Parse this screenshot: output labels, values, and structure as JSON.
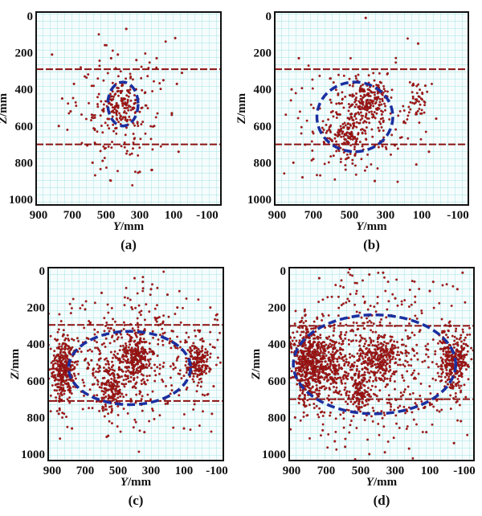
{
  "chart_data": [
    {
      "type": "scatter",
      "label": "(a)",
      "xlabel_var": "Y",
      "xlabel_unit": "/mm",
      "ylabel_var": "Z",
      "ylabel_unit": "/mm",
      "xlim": [
        900,
        -100
      ],
      "ylim": [
        0,
        1000
      ],
      "y_inverted": true,
      "grid": true,
      "xticks": [
        "900",
        "700",
        "500",
        "300",
        "100",
        "-100"
      ],
      "yticks": [
        "0",
        "200",
        "400",
        "600",
        "800",
        "1000"
      ],
      "ref_lines_z": [
        290,
        700
      ],
      "ellipse": {
        "cy": 400,
        "cz": 480,
        "ry": 90,
        "rz": 120
      },
      "clusters": [
        {
          "y": 410,
          "z": 470,
          "sy": 60,
          "sz": 70,
          "n": 130
        },
        {
          "y": 420,
          "z": 540,
          "sy": 140,
          "sz": 140,
          "n": 150
        }
      ],
      "points": [
        [
          820,
          210
        ],
        [
          380,
          70
        ],
        [
          90,
          120
        ],
        [
          430,
          210
        ],
        [
          470,
          230
        ],
        [
          320,
          240
        ],
        [
          200,
          230
        ],
        [
          780,
          600
        ],
        [
          760,
          450
        ],
        [
          690,
          370
        ],
        [
          710,
          520
        ],
        [
          300,
          850
        ],
        [
          230,
          840
        ],
        [
          70,
          740
        ],
        [
          80,
          370
        ],
        [
          50,
          310
        ],
        [
          110,
          530
        ],
        [
          160,
          350
        ],
        [
          580,
          800
        ],
        [
          520,
          790
        ]
      ]
    },
    {
      "type": "scatter",
      "label": "(b)",
      "xlabel_var": "Y",
      "xlabel_unit": "/mm",
      "ylabel_var": "Z",
      "ylabel_unit": "/mm",
      "xlim": [
        900,
        -100
      ],
      "ylim": [
        0,
        1000
      ],
      "y_inverted": true,
      "grid": true,
      "xticks": [
        "900",
        "700",
        "500",
        "300",
        "100",
        "-100"
      ],
      "yticks": [
        "0",
        "200",
        "400",
        "600",
        "800",
        "1000"
      ],
      "ref_lines_z": [
        290,
        700
      ],
      "ellipse": {
        "cy": 470,
        "cz": 550,
        "ry": 210,
        "rz": 190
      },
      "clusters": [
        {
          "y": 400,
          "z": 460,
          "sy": 55,
          "sz": 60,
          "n": 170
        },
        {
          "y": 520,
          "z": 650,
          "sy": 50,
          "sz": 60,
          "n": 120
        },
        {
          "y": 450,
          "z": 550,
          "sy": 170,
          "sz": 160,
          "n": 200
        },
        {
          "y": 130,
          "z": 470,
          "sy": 30,
          "sz": 50,
          "n": 40
        }
      ],
      "points": [
        [
          410,
          10
        ],
        [
          780,
          230
        ],
        [
          820,
          400
        ],
        [
          810,
          800
        ],
        [
          760,
          880
        ],
        [
          120,
          150
        ],
        [
          80,
          380
        ],
        [
          20,
          560
        ],
        [
          60,
          740
        ],
        [
          130,
          810
        ],
        [
          700,
          780
        ],
        [
          360,
          900
        ]
      ]
    },
    {
      "type": "scatter",
      "label": "(c)",
      "xlabel_var": "Y",
      "xlabel_unit": "/mm",
      "ylabel_var": "Z",
      "ylabel_unit": "/mm",
      "xlim": [
        900,
        -100
      ],
      "ylim": [
        0,
        1000
      ],
      "y_inverted": true,
      "grid": true,
      "xticks": [
        "900",
        "700",
        "500",
        "300",
        "100",
        "-100"
      ],
      "yticks": [
        "0",
        "200",
        "400",
        "600",
        "800",
        "1000"
      ],
      "ref_lines_z": [
        295,
        710
      ],
      "ellipse": {
        "cy": 430,
        "cz": 530,
        "ry": 370,
        "rz": 200
      },
      "clusters": [
        {
          "y": 830,
          "z": 530,
          "sy": 35,
          "sz": 90,
          "n": 320
        },
        {
          "y": 390,
          "z": 480,
          "sy": 50,
          "sz": 70,
          "n": 220
        },
        {
          "y": 540,
          "z": 640,
          "sy": 40,
          "sz": 70,
          "n": 150
        },
        {
          "y": 20,
          "z": 500,
          "sy": 45,
          "sz": 60,
          "n": 180
        },
        {
          "y": 420,
          "z": 470,
          "sy": 270,
          "sz": 180,
          "n": 500
        }
      ],
      "points": [
        [
          400,
          40
        ],
        [
          350,
          60
        ],
        [
          300,
          100
        ],
        [
          600,
          120
        ],
        [
          700,
          210
        ],
        [
          200,
          130
        ],
        [
          140,
          200
        ],
        [
          -60,
          200
        ],
        [
          860,
          780
        ],
        [
          780,
          860
        ],
        [
          560,
          900
        ],
        [
          340,
          880
        ],
        [
          100,
          860
        ],
        [
          -70,
          780
        ],
        [
          -80,
          630
        ]
      ]
    },
    {
      "type": "scatter",
      "label": "(d)",
      "xlabel_var": "Y",
      "xlabel_unit": "/mm",
      "ylabel_var": "Z",
      "ylabel_unit": "/mm",
      "xlim": [
        900,
        -100
      ],
      "ylim": [
        0,
        1000
      ],
      "y_inverted": true,
      "grid": true,
      "xticks": [
        "900",
        "700",
        "500",
        "300",
        "100",
        "-100"
      ],
      "yticks": [
        "0",
        "200",
        "400",
        "600",
        "800",
        "1000"
      ],
      "ref_lines_z": [
        300,
        700
      ],
      "ellipse": {
        "cy": 420,
        "cz": 510,
        "ry": 470,
        "rz": 270
      },
      "clusters": [
        {
          "y": 810,
          "z": 500,
          "sy": 50,
          "sz": 110,
          "n": 450
        },
        {
          "y": 690,
          "z": 500,
          "sy": 60,
          "sz": 80,
          "n": 250
        },
        {
          "y": 390,
          "z": 480,
          "sy": 55,
          "sz": 60,
          "n": 220
        },
        {
          "y": 500,
          "z": 650,
          "sy": 40,
          "sz": 70,
          "n": 150
        },
        {
          "y": -40,
          "z": 490,
          "sy": 45,
          "sz": 80,
          "n": 300
        },
        {
          "y": 420,
          "z": 480,
          "sy": 300,
          "sz": 230,
          "n": 600
        }
      ],
      "points": [
        [
          370,
          10
        ],
        [
          -90,
          10
        ],
        [
          740,
          40
        ],
        [
          450,
          20
        ],
        [
          600,
          90
        ],
        [
          80,
          60
        ],
        [
          100,
          110
        ],
        [
          -60,
          100
        ],
        [
          300,
          150
        ],
        [
          820,
          240
        ],
        [
          880,
          800
        ],
        [
          720,
          870
        ],
        [
          590,
          960
        ],
        [
          450,
          1000
        ],
        [
          360,
          990
        ],
        [
          120,
          880
        ],
        [
          -40,
          940
        ],
        [
          220,
          970
        ],
        [
          650,
          930
        ],
        [
          -80,
          820
        ]
      ]
    }
  ]
}
